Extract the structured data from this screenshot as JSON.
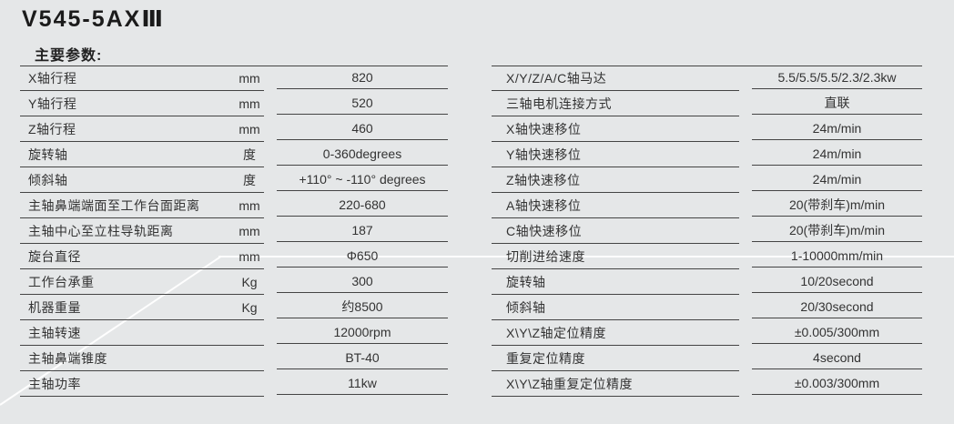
{
  "page": {
    "title": "V545-5AXⅢ",
    "section_heading": "主要参数:"
  },
  "left_table": {
    "rows": [
      {
        "label": "X轴行程",
        "unit": "mm",
        "value": "820"
      },
      {
        "label": "Y轴行程",
        "unit": "mm",
        "value": "520"
      },
      {
        "label": "Z轴行程",
        "unit": "mm",
        "value": "460"
      },
      {
        "label": "旋转轴",
        "unit": "度",
        "value": "0-360degrees"
      },
      {
        "label": "倾斜轴",
        "unit": "度",
        "value": "+110° ~ -110° degrees"
      },
      {
        "label": "主轴鼻端端面至工作台面距离",
        "unit": "mm",
        "value": "220-680"
      },
      {
        "label": "主轴中心至立柱导轨距离",
        "unit": "mm",
        "value": "187"
      },
      {
        "label": "旋台直径",
        "unit": "mm",
        "value": "Φ650"
      },
      {
        "label": "工作台承重",
        "unit": "Kg",
        "value": "300"
      },
      {
        "label": "机器重量",
        "unit": "Kg",
        "value": "约8500"
      },
      {
        "label": "主轴转速",
        "unit": "",
        "value": "12000rpm"
      },
      {
        "label": "主轴鼻端锥度",
        "unit": "",
        "value": "BT-40"
      },
      {
        "label": "主轴功率",
        "unit": "",
        "value": "11kw"
      }
    ]
  },
  "right_table": {
    "rows": [
      {
        "label": "X/Y/Z/A/C轴马达",
        "value": "5.5/5.5/5.5/2.3/2.3kw"
      },
      {
        "label": "三轴电机连接方式",
        "value": "直联"
      },
      {
        "label": "X轴快速移位",
        "value": "24m/min"
      },
      {
        "label": "Y轴快速移位",
        "value": "24m/min"
      },
      {
        "label": "Z轴快速移位",
        "value": "24m/min"
      },
      {
        "label": "A轴快速移位",
        "value": "20(带刹车)m/min"
      },
      {
        "label": "C轴快速移位",
        "value": "20(带刹车)m/min"
      },
      {
        "label": "切削进给速度",
        "value": "1-10000mm/min"
      },
      {
        "label": "旋转轴",
        "value": "10/20second"
      },
      {
        "label": "倾斜轴",
        "value": "20/30second"
      },
      {
        "label": "X\\Y\\Z轴定位精度",
        "value": "±0.005/300mm"
      },
      {
        "label": "重复定位精度",
        "value": "4second"
      },
      {
        "label": "X\\Y\\Z轴重复定位精度",
        "value": "±0.003/300mm"
      }
    ]
  },
  "colors": {
    "background": "#e5e7e8",
    "line": "#444444",
    "text": "#333333",
    "title": "#1b1b1b",
    "decor": "#ffffff"
  }
}
